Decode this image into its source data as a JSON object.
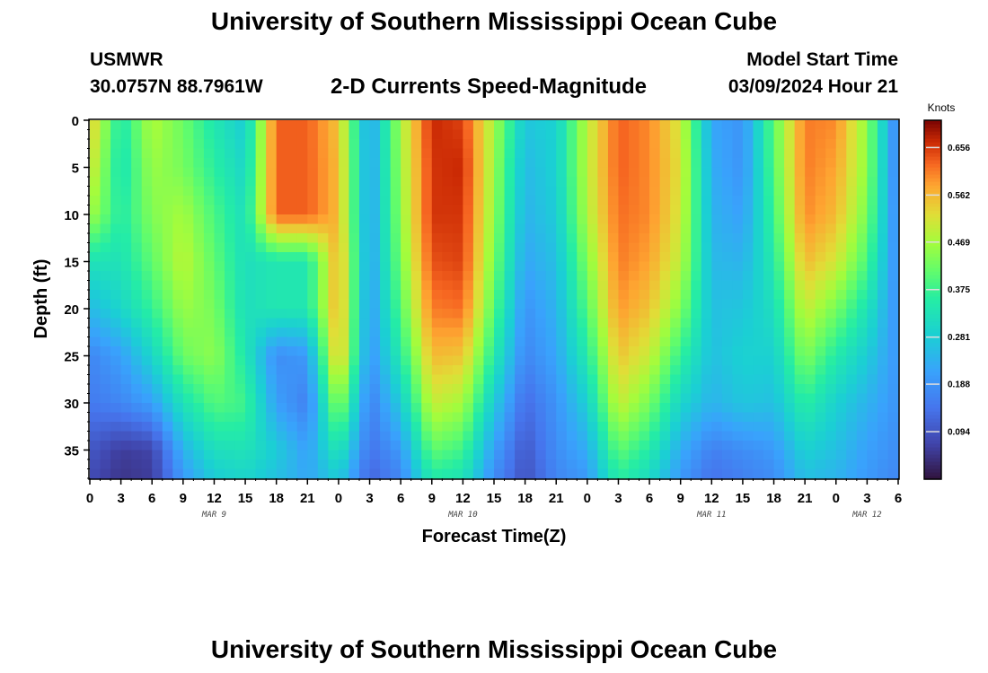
{
  "header": {
    "title": "University of Southern Mississippi Ocean Cube",
    "station": "USMWR",
    "coordinates": "30.0757N  88.7961W",
    "subtitle": "2-D Currents Speed-Magnitude",
    "model_start_label": "Model Start Time",
    "model_start_value": "03/09/2024 Hour 21"
  },
  "footer": {
    "title": "University of Southern Mississippi Ocean Cube"
  },
  "chart_data": {
    "type": "heatmap",
    "title": "2-D Currents Speed-Magnitude",
    "xlabel": "Forecast Time(Z)",
    "ylabel": "Depth (ft)",
    "x_range_hours": [
      0,
      78
    ],
    "y_range_ft": [
      0,
      38
    ],
    "x_tick_labels": [
      "0",
      "3",
      "6",
      "9",
      "12",
      "15",
      "18",
      "21",
      "0",
      "3",
      "6",
      "9",
      "12",
      "15",
      "18",
      "21",
      "0",
      "3",
      "6",
      "9",
      "12",
      "15",
      "18",
      "21",
      "0",
      "3",
      "6"
    ],
    "y_ticks": [
      0,
      5,
      10,
      15,
      20,
      25,
      30,
      35
    ],
    "date_labels": [
      {
        "label": "MAR 9",
        "hour": 12
      },
      {
        "label": "MAR 10",
        "hour": 36
      },
      {
        "label": "MAR 11",
        "hour": 60
      },
      {
        "label": "MAR 12",
        "hour": 75
      }
    ],
    "colorbar": {
      "title": "Knots",
      "min": 0.0,
      "max": 0.71,
      "ticks": [
        0.094,
        0.188,
        0.281,
        0.375,
        0.469,
        0.562,
        0.656
      ],
      "tick_labels": [
        "0.094",
        "0.188",
        "0.281",
        "0.375",
        "0.469",
        "0.562",
        "0.656"
      ]
    },
    "grid": false,
    "grid_hours": [
      0,
      3,
      6,
      9,
      12,
      15,
      18,
      21,
      24,
      27,
      30,
      33,
      36,
      39,
      42,
      45,
      48,
      51,
      54,
      57,
      60,
      63,
      66,
      69,
      72,
      75,
      78
    ],
    "grid_depths_ft": [
      0,
      5,
      10,
      15,
      20,
      25,
      30,
      35,
      38
    ],
    "speed_knots": [
      [
        0.55,
        0.34,
        0.48,
        0.42,
        0.34,
        0.28,
        0.63,
        0.63,
        0.55,
        0.21,
        0.47,
        0.67,
        0.65,
        0.47,
        0.27,
        0.29,
        0.49,
        0.63,
        0.6,
        0.51,
        0.22,
        0.19,
        0.41,
        0.61,
        0.6,
        0.45,
        0.15
      ],
      [
        0.52,
        0.33,
        0.46,
        0.43,
        0.36,
        0.3,
        0.63,
        0.63,
        0.56,
        0.21,
        0.46,
        0.66,
        0.67,
        0.46,
        0.25,
        0.29,
        0.49,
        0.63,
        0.6,
        0.52,
        0.23,
        0.19,
        0.4,
        0.61,
        0.58,
        0.45,
        0.15
      ],
      [
        0.47,
        0.35,
        0.44,
        0.47,
        0.39,
        0.32,
        0.63,
        0.63,
        0.56,
        0.21,
        0.45,
        0.66,
        0.66,
        0.45,
        0.24,
        0.28,
        0.48,
        0.62,
        0.6,
        0.51,
        0.24,
        0.21,
        0.38,
        0.6,
        0.56,
        0.43,
        0.16
      ],
      [
        0.33,
        0.33,
        0.41,
        0.49,
        0.41,
        0.32,
        0.34,
        0.34,
        0.58,
        0.21,
        0.43,
        0.64,
        0.65,
        0.43,
        0.22,
        0.26,
        0.44,
        0.61,
        0.58,
        0.49,
        0.25,
        0.24,
        0.35,
        0.56,
        0.51,
        0.39,
        0.17
      ],
      [
        0.25,
        0.3,
        0.37,
        0.46,
        0.43,
        0.32,
        0.34,
        0.34,
        0.58,
        0.2,
        0.4,
        0.61,
        0.62,
        0.4,
        0.19,
        0.24,
        0.4,
        0.59,
        0.55,
        0.44,
        0.26,
        0.27,
        0.32,
        0.5,
        0.43,
        0.33,
        0.18
      ],
      [
        0.17,
        0.21,
        0.3,
        0.42,
        0.45,
        0.34,
        0.18,
        0.2,
        0.57,
        0.19,
        0.35,
        0.56,
        0.55,
        0.35,
        0.17,
        0.22,
        0.35,
        0.55,
        0.5,
        0.37,
        0.26,
        0.29,
        0.29,
        0.44,
        0.35,
        0.28,
        0.19
      ],
      [
        0.15,
        0.17,
        0.21,
        0.33,
        0.4,
        0.38,
        0.21,
        0.16,
        0.46,
        0.16,
        0.28,
        0.5,
        0.47,
        0.28,
        0.13,
        0.19,
        0.29,
        0.5,
        0.43,
        0.3,
        0.24,
        0.27,
        0.26,
        0.36,
        0.29,
        0.24,
        0.19
      ],
      [
        0.1,
        0.06,
        0.07,
        0.24,
        0.32,
        0.33,
        0.28,
        0.21,
        0.34,
        0.14,
        0.2,
        0.41,
        0.38,
        0.21,
        0.1,
        0.18,
        0.23,
        0.41,
        0.35,
        0.23,
        0.16,
        0.18,
        0.2,
        0.29,
        0.26,
        0.21,
        0.18
      ],
      [
        0.08,
        0.05,
        0.06,
        0.2,
        0.28,
        0.3,
        0.26,
        0.22,
        0.28,
        0.12,
        0.17,
        0.35,
        0.33,
        0.18,
        0.09,
        0.17,
        0.2,
        0.36,
        0.31,
        0.2,
        0.14,
        0.16,
        0.18,
        0.26,
        0.24,
        0.2,
        0.17
      ]
    ]
  }
}
